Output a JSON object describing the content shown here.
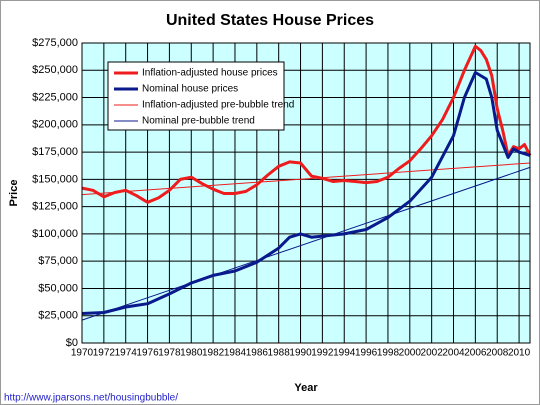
{
  "chart_data": {
    "type": "line",
    "title": "United States House Prices",
    "xlabel": "Year",
    "ylabel": "Price",
    "footer": "http://www.jparsons.net/housingbubble/",
    "xlim": [
      1970,
      2011
    ],
    "xticks": [
      1970,
      1972,
      1974,
      1976,
      1978,
      1980,
      1982,
      1984,
      1986,
      1988,
      1990,
      1992,
      1994,
      1996,
      1998,
      2000,
      2002,
      2004,
      2006,
      2008,
      2010
    ],
    "ylim": [
      0,
      275000
    ],
    "yticks": [
      {
        "value": 0,
        "label": "$0"
      },
      {
        "value": 25000,
        "label": "$25,000"
      },
      {
        "value": 50000,
        "label": "$50,000"
      },
      {
        "value": 75000,
        "label": "$75,000"
      },
      {
        "value": 100000,
        "label": "$100,000"
      },
      {
        "value": 125000,
        "label": "$125,000"
      },
      {
        "value": 150000,
        "label": "$150,000"
      },
      {
        "value": 175000,
        "label": "$175,000"
      },
      {
        "value": 200000,
        "label": "$200,000"
      },
      {
        "value": 225000,
        "label": "$225,000"
      },
      {
        "value": 250000,
        "label": "$250,000"
      },
      {
        "value": 275000,
        "label": "$275,000"
      }
    ],
    "grid": true,
    "background": "#ccffff",
    "series": [
      {
        "name": "Inflation-adjusted house prices",
        "color": "#ee1c1c",
        "width": 3,
        "x": [
          1970,
          1971,
          1972,
          1973,
          1974,
          1975,
          1976,
          1977,
          1978,
          1979,
          1980,
          1981,
          1982,
          1983,
          1984,
          1985,
          1986,
          1987,
          1988,
          1989,
          1990,
          1991,
          1992,
          1993,
          1994,
          1995,
          1996,
          1997,
          1998,
          1999,
          2000,
          2001,
          2002,
          2003,
          2004,
          2005,
          2006,
          2006.5,
          2007,
          2007.5,
          2008,
          2008.5,
          2009,
          2009.5,
          2010,
          2010.5,
          2011
        ],
        "values": [
          142000,
          140000,
          134000,
          138000,
          140000,
          135000,
          129000,
          133000,
          140000,
          150000,
          152000,
          146000,
          141000,
          137000,
          137000,
          139000,
          145000,
          154000,
          162000,
          166000,
          165000,
          153000,
          151000,
          148000,
          149000,
          148000,
          147000,
          148000,
          152000,
          160000,
          167000,
          178000,
          190000,
          205000,
          225000,
          250000,
          272000,
          268000,
          260000,
          245000,
          215000,
          195000,
          172000,
          180000,
          178000,
          182000,
          172000
        ]
      },
      {
        "name": "Nominal house prices",
        "color": "#0a1a8c",
        "width": 3,
        "x": [
          1970,
          1972,
          1974,
          1976,
          1978,
          1980,
          1982,
          1984,
          1986,
          1988,
          1989,
          1990,
          1991,
          1992,
          1994,
          1996,
          1998,
          2000,
          2002,
          2004,
          2005,
          2006,
          2007,
          2007.5,
          2008,
          2009,
          2009.5,
          2010,
          2011
        ],
        "values": [
          27000,
          28000,
          33000,
          36000,
          45000,
          55000,
          62000,
          66000,
          74000,
          87000,
          97000,
          100000,
          97000,
          98000,
          100000,
          104000,
          115000,
          130000,
          152000,
          190000,
          225000,
          248000,
          242000,
          225000,
          195000,
          170000,
          178000,
          175000,
          172000
        ]
      },
      {
        "name": "Inflation-adjusted pre-bubble trend",
        "color": "#ee1c1c",
        "width": 1,
        "x": [
          1970,
          2011
        ],
        "values": [
          136000,
          165000
        ]
      },
      {
        "name": "Nominal pre-bubble trend",
        "color": "#0a1a8c",
        "width": 1,
        "x": [
          1970,
          2011
        ],
        "values": [
          21000,
          161000
        ]
      }
    ]
  }
}
